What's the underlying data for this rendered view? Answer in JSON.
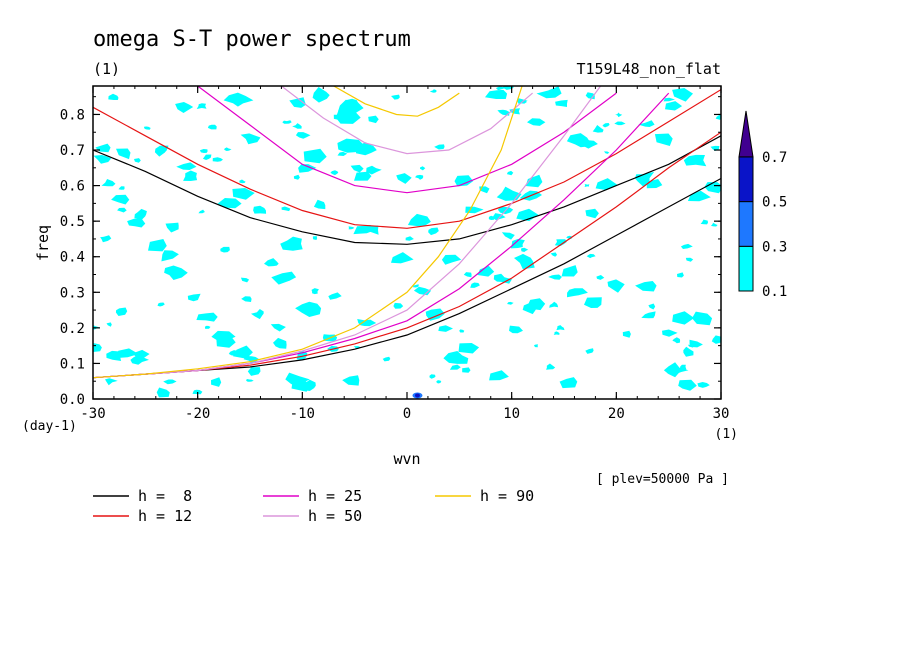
{
  "chart_data": {
    "type": "line",
    "title": "omega S-T power spectrum",
    "subtitle_left": "(1)",
    "subtitle_right": "T159L48_non_flat",
    "xlabel": "wvn",
    "ylabel": "freq",
    "x_unit": "(1)",
    "y_unit": "(day-1)",
    "annotation": "[ plev=50000 Pa ]",
    "xlim": [
      -30,
      30
    ],
    "ylim": [
      0,
      0.88
    ],
    "x_ticks": [
      "-30",
      "-20",
      "-10",
      "0",
      "10",
      "20",
      "30"
    ],
    "y_ticks": [
      "0.0",
      "0.1",
      "0.2",
      "0.3",
      "0.4",
      "0.5",
      "0.6",
      "0.7",
      "0.8"
    ],
    "colorbar": {
      "levels": [
        "0.1",
        "0.3",
        "0.5",
        "0.7"
      ],
      "colors": [
        "#00ffff",
        "#1e78ff",
        "#0a14c8",
        "#400090"
      ]
    },
    "legend": [
      {
        "label": "h =  8",
        "color": "#000000"
      },
      {
        "label": "h = 25",
        "color": "#e100c8"
      },
      {
        "label": "h = 90",
        "color": "#f5c800"
      },
      {
        "label": "h = 12",
        "color": "#e61414"
      },
      {
        "label": "h = 50",
        "color": "#dc96dc"
      }
    ],
    "series": [
      {
        "name": "h =  8",
        "color": "#000000",
        "branches": {
          "upper": {
            "x": [
              -30,
              -25,
              -20,
              -15,
              -10,
              -5,
              0,
              5,
              10,
              15,
              20,
              25,
              30
            ],
            "y": [
              0.7,
              0.64,
              0.57,
              0.51,
              0.47,
              0.44,
              0.435,
              0.45,
              0.49,
              0.54,
              0.6,
              0.66,
              0.74
            ]
          },
          "lower": {
            "x": [
              -30,
              -25,
              -20,
              -15,
              -10,
              -5,
              0,
              5,
              10,
              15,
              20,
              25,
              30
            ],
            "y": [
              0.06,
              0.07,
              0.08,
              0.09,
              0.11,
              0.14,
              0.18,
              0.24,
              0.31,
              0.38,
              0.46,
              0.54,
              0.62
            ]
          }
        }
      },
      {
        "name": "h = 12",
        "color": "#e61414",
        "branches": {
          "upper": {
            "x": [
              -30,
              -25,
              -20,
              -15,
              -10,
              -5,
              0,
              5,
              10,
              15,
              20,
              25,
              30
            ],
            "y": [
              0.82,
              0.74,
              0.66,
              0.59,
              0.53,
              0.49,
              0.48,
              0.5,
              0.55,
              0.61,
              0.69,
              0.78,
              0.87
            ]
          },
          "lower": {
            "x": [
              -30,
              -25,
              -20,
              -15,
              -10,
              -5,
              0,
              5,
              10,
              15,
              20,
              25,
              30
            ],
            "y": [
              0.06,
              0.07,
              0.08,
              0.095,
              0.12,
              0.155,
              0.2,
              0.26,
              0.34,
              0.44,
              0.54,
              0.65,
              0.75
            ]
          }
        }
      },
      {
        "name": "h = 25",
        "color": "#e100c8",
        "branches": {
          "upper": {
            "x": [
              -20,
              -15,
              -10,
              -5,
              0,
              5,
              10,
              15,
              20
            ],
            "y": [
              0.88,
              0.77,
              0.66,
              0.6,
              0.58,
              0.6,
              0.66,
              0.75,
              0.86
            ]
          },
          "lower": {
            "x": [
              -30,
              -25,
              -20,
              -15,
              -10,
              -5,
              0,
              5,
              10,
              15,
              20,
              25
            ],
            "y": [
              0.06,
              0.07,
              0.08,
              0.1,
              0.13,
              0.17,
              0.22,
              0.31,
              0.43,
              0.56,
              0.7,
              0.86
            ]
          }
        }
      },
      {
        "name": "h = 50",
        "color": "#dc96dc",
        "branches": {
          "upper": {
            "x": [
              -12,
              -8,
              -4,
              0,
              4,
              8,
              12
            ],
            "y": [
              0.88,
              0.79,
              0.72,
              0.69,
              0.7,
              0.76,
              0.86
            ]
          },
          "lower": {
            "x": [
              -30,
              -25,
              -20,
              -15,
              -10,
              -5,
              0,
              5,
              10,
              15,
              18.5
            ],
            "y": [
              0.06,
              0.07,
              0.08,
              0.1,
              0.135,
              0.18,
              0.25,
              0.38,
              0.55,
              0.74,
              0.88
            ]
          }
        }
      },
      {
        "name": "h = 90",
        "color": "#f5c800",
        "branches": {
          "upper": {
            "x": [
              -7,
              -4,
              -1,
              1,
              3,
              5
            ],
            "y": [
              0.88,
              0.83,
              0.8,
              0.795,
              0.82,
              0.86
            ]
          },
          "lower": {
            "x": [
              -30,
              -25,
              -20,
              -15,
              -10,
              -5,
              0,
              3,
              6,
              9,
              11
            ],
            "y": [
              0.06,
              0.07,
              0.085,
              0.105,
              0.14,
              0.2,
              0.3,
              0.4,
              0.53,
              0.7,
              0.88
            ]
          }
        }
      }
    ]
  }
}
